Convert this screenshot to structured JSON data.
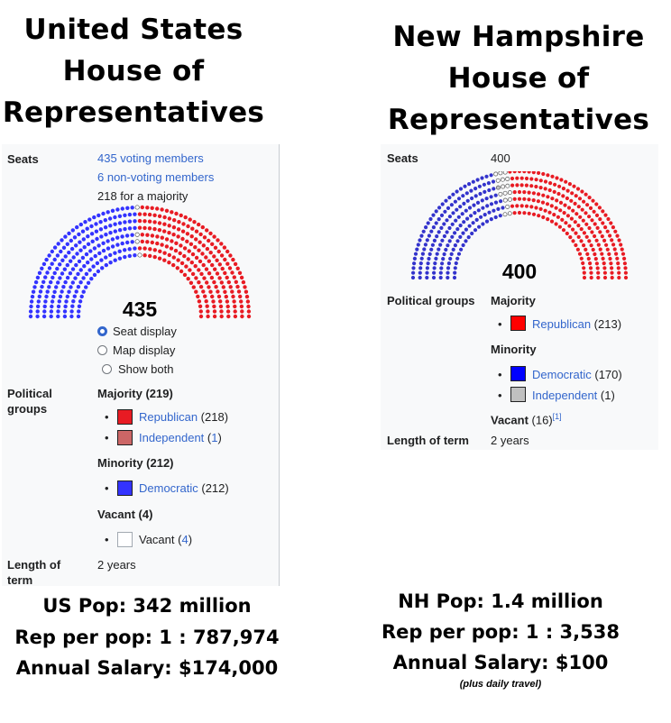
{
  "us": {
    "title": [
      "United States",
      "House of",
      "Representatives"
    ],
    "seats_label": "Seats",
    "seats_lines": [
      "435 voting members",
      "6 non-voting members",
      "218 for a majority"
    ],
    "seat_total": "435",
    "display_options": [
      "Seat display",
      "Map display",
      "Show both"
    ],
    "selected_option": "Seat display",
    "groups_label": [
      "Political",
      "groups"
    ],
    "majority_heading": "Majority (219)",
    "minority_heading": "Minority (212)",
    "vacant_heading": "Vacant (4)",
    "parties": [
      {
        "name": "Republican",
        "count": "(218)",
        "color": "#e81b23"
      },
      {
        "name": "Independent",
        "count": "(1)",
        "color": "#cc6666"
      },
      {
        "name": "Democratic",
        "count": "(212)",
        "color": "#3333ff"
      },
      {
        "name": "Vacant",
        "count": "(4)",
        "color": "#ffffff"
      }
    ],
    "term_label": [
      "Length of",
      "term"
    ],
    "term_value": "2 years",
    "hemicycle": {
      "democratic": 212,
      "vacant": 4,
      "republican": 219,
      "colors": {
        "dem": "#3333ff",
        "vac": "#ffffff",
        "rep": "#e81b23"
      }
    },
    "stats": [
      "US Pop: 342 million",
      "Rep per pop: 1 : 787,974",
      "Annual Salary: $174,000"
    ]
  },
  "nh": {
    "title": [
      "New Hampshire",
      "House of",
      "Representatives"
    ],
    "seats_label": "Seats",
    "seats_value": "400",
    "seat_total": "400",
    "groups_label": "Political groups",
    "majority_heading": "Majority",
    "minority_heading": "Minority",
    "vacant_text": "Vacant (16)",
    "vacant_ref": "[1]",
    "parties": [
      {
        "name": "Republican",
        "count": "(213)",
        "color": "#ff0000"
      },
      {
        "name": "Democratic",
        "count": "(170)",
        "color": "#0000ff"
      },
      {
        "name": "Independent",
        "count": "(1)",
        "color": "#c0c0c0"
      }
    ],
    "term_label": "Length of term",
    "term_value": "2 years",
    "hemicycle": {
      "democratic": 170,
      "independent": 1,
      "vacant": 16,
      "republican": 213,
      "colors": {
        "dem": "#3333cc",
        "ind": "#c0c0c0",
        "vac": "#ffffff",
        "rep": "#e81b23"
      }
    },
    "stats": [
      "NH Pop: 1.4 million",
      "Rep per pop: 1 : 3,538",
      "Annual Salary: $100"
    ],
    "stats_note": "(plus daily travel)"
  }
}
